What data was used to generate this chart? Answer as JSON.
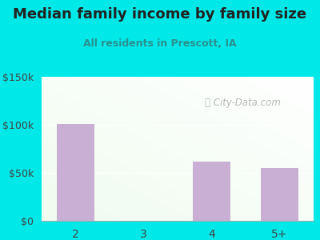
{
  "title": "Median family income by family size",
  "subtitle": "All residents in Prescott, IA",
  "categories": [
    "2",
    "3",
    "4",
    "5+"
  ],
  "values": [
    101000,
    0,
    62000,
    55000
  ],
  "bar_color": "#c9afd4",
  "title_color": "#222222",
  "subtitle_color": "#2a9090",
  "bg_color": "#00e8e8",
  "ylim": [
    0,
    150000
  ],
  "yticks": [
    0,
    50000,
    100000,
    150000
  ],
  "ytick_labels": [
    "$0",
    "$50k",
    "$100k",
    "$150k"
  ],
  "watermark": "City-Data.com",
  "title_fontsize": 13,
  "subtitle_fontsize": 9,
  "tick_fontsize": 9
}
